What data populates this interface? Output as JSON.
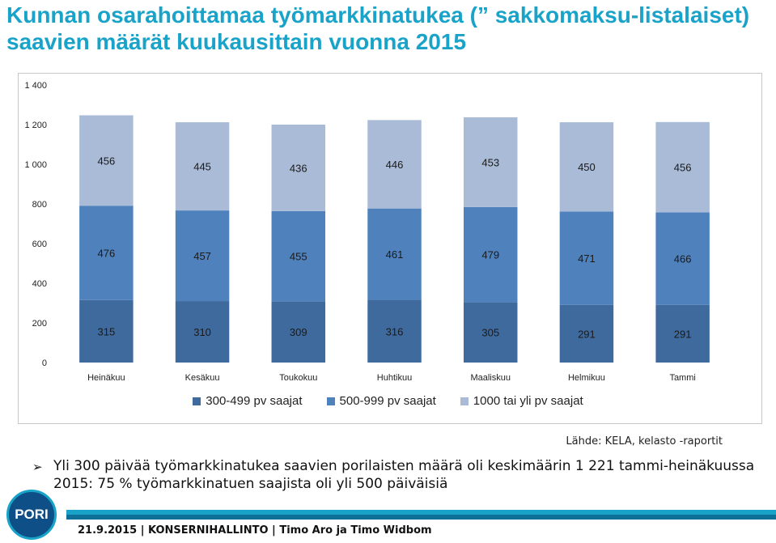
{
  "title": "Kunnan osarahoittamaa työmarkkinatukea (” sakkomaksu-listalaiset) saavien määrät kuukausittain vuonna 2015",
  "chart_data": {
    "type": "bar",
    "stacked": true,
    "categories": [
      "Heinäkuu",
      "Kesäkuu",
      "Toukokuu",
      "Huhtikuu",
      "Maaliskuu",
      "Helmikuu",
      "Tammi"
    ],
    "series": [
      {
        "name": "300-499 pv saajat",
        "color": "#3f6a9e",
        "values": [
          315,
          310,
          309,
          316,
          305,
          291,
          291
        ]
      },
      {
        "name": "500-999 pv saajat",
        "color": "#4f81bd",
        "values": [
          476,
          457,
          455,
          461,
          479,
          471,
          466
        ]
      },
      {
        "name": "1000 tai yli pv saajat",
        "color": "#a9bbd7",
        "values": [
          456,
          445,
          436,
          446,
          453,
          450,
          456
        ]
      }
    ],
    "ylim": [
      0,
      1400
    ],
    "yticks": [
      0,
      200,
      400,
      600,
      800,
      1000,
      1200,
      1400
    ],
    "ytick_labels": [
      "0",
      "200",
      "400",
      "600",
      "800",
      "1 000",
      "1 200",
      "1 400"
    ],
    "grid": false,
    "legend": "bottom"
  },
  "source": "Lähde: KELA, kelasto -raportit",
  "bullet": {
    "icon": "arrowhead-bullet-icon",
    "text": "Yli 300 päivää työmarkkinatukea saavien porilaisten määrä oli keskimäärin 1 221 tammi-heinäkuussa 2015: 75 % työmarkkinatuen saajista oli yli 500 päiväisiä"
  },
  "logo": "PORI",
  "footer": "21.9.2015 | KONSERNIHALLINTO | Timo Aro ja Timo Widbom",
  "colors": {
    "title": "#1aa3c9",
    "footer_bar_light": "#1aa3c9",
    "footer_bar_dark": "#0e6f97",
    "logo_bg": "#0e4f87"
  }
}
